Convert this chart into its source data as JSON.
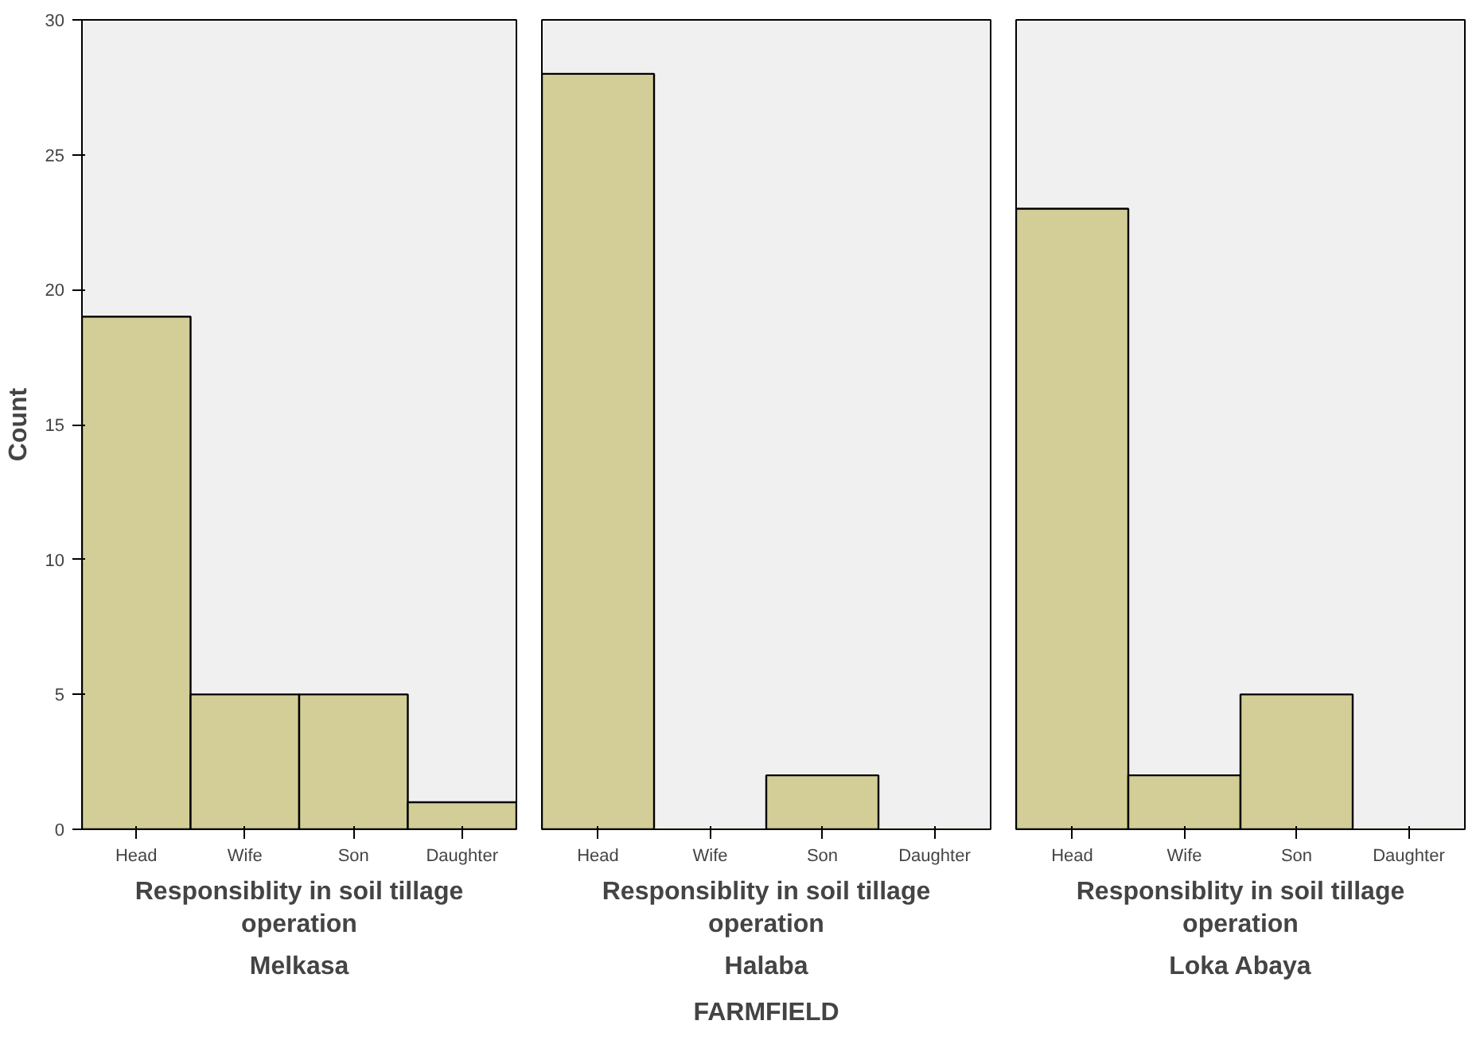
{
  "chart_data": [
    {
      "type": "bar",
      "title": "Melkasa",
      "xlabel": "Responsiblity in soil tillage operation",
      "ylabel": "Count",
      "categories": [
        "Head",
        "Wife",
        "Son",
        "Daughter"
      ],
      "values": [
        19,
        5,
        5,
        1
      ],
      "color": "#d3ce97",
      "ylim": [
        0,
        30
      ],
      "yticks": [
        0,
        5,
        10,
        15,
        20,
        25,
        30
      ],
      "grid": false
    },
    {
      "type": "bar",
      "title": "Halaba",
      "xlabel": "Responsiblity in soil tillage operation",
      "categories": [
        "Head",
        "Wife",
        "Son",
        "Daughter"
      ],
      "values": [
        28,
        0,
        2,
        0
      ],
      "color": "#d3ce97",
      "ylim": [
        0,
        30
      ],
      "yticks": [
        0,
        5,
        10,
        15,
        20,
        25,
        30
      ],
      "tick_labels": "x",
      "grid": false,
      "annotations": [
        "FARMFIELD"
      ]
    },
    {
      "type": "bar",
      "title": "Loka Abaya",
      "xlabel": "Responsiblity in soil tillage operation",
      "categories": [
        "Head",
        "Wife",
        "Son",
        "Daughter"
      ],
      "values": [
        23,
        2,
        5,
        0
      ],
      "color": "#d3ce97",
      "ylim": [
        0,
        30
      ],
      "yticks": [
        0,
        5,
        10,
        15,
        20,
        25,
        30
      ],
      "tick_labels": "x",
      "grid": false
    }
  ]
}
